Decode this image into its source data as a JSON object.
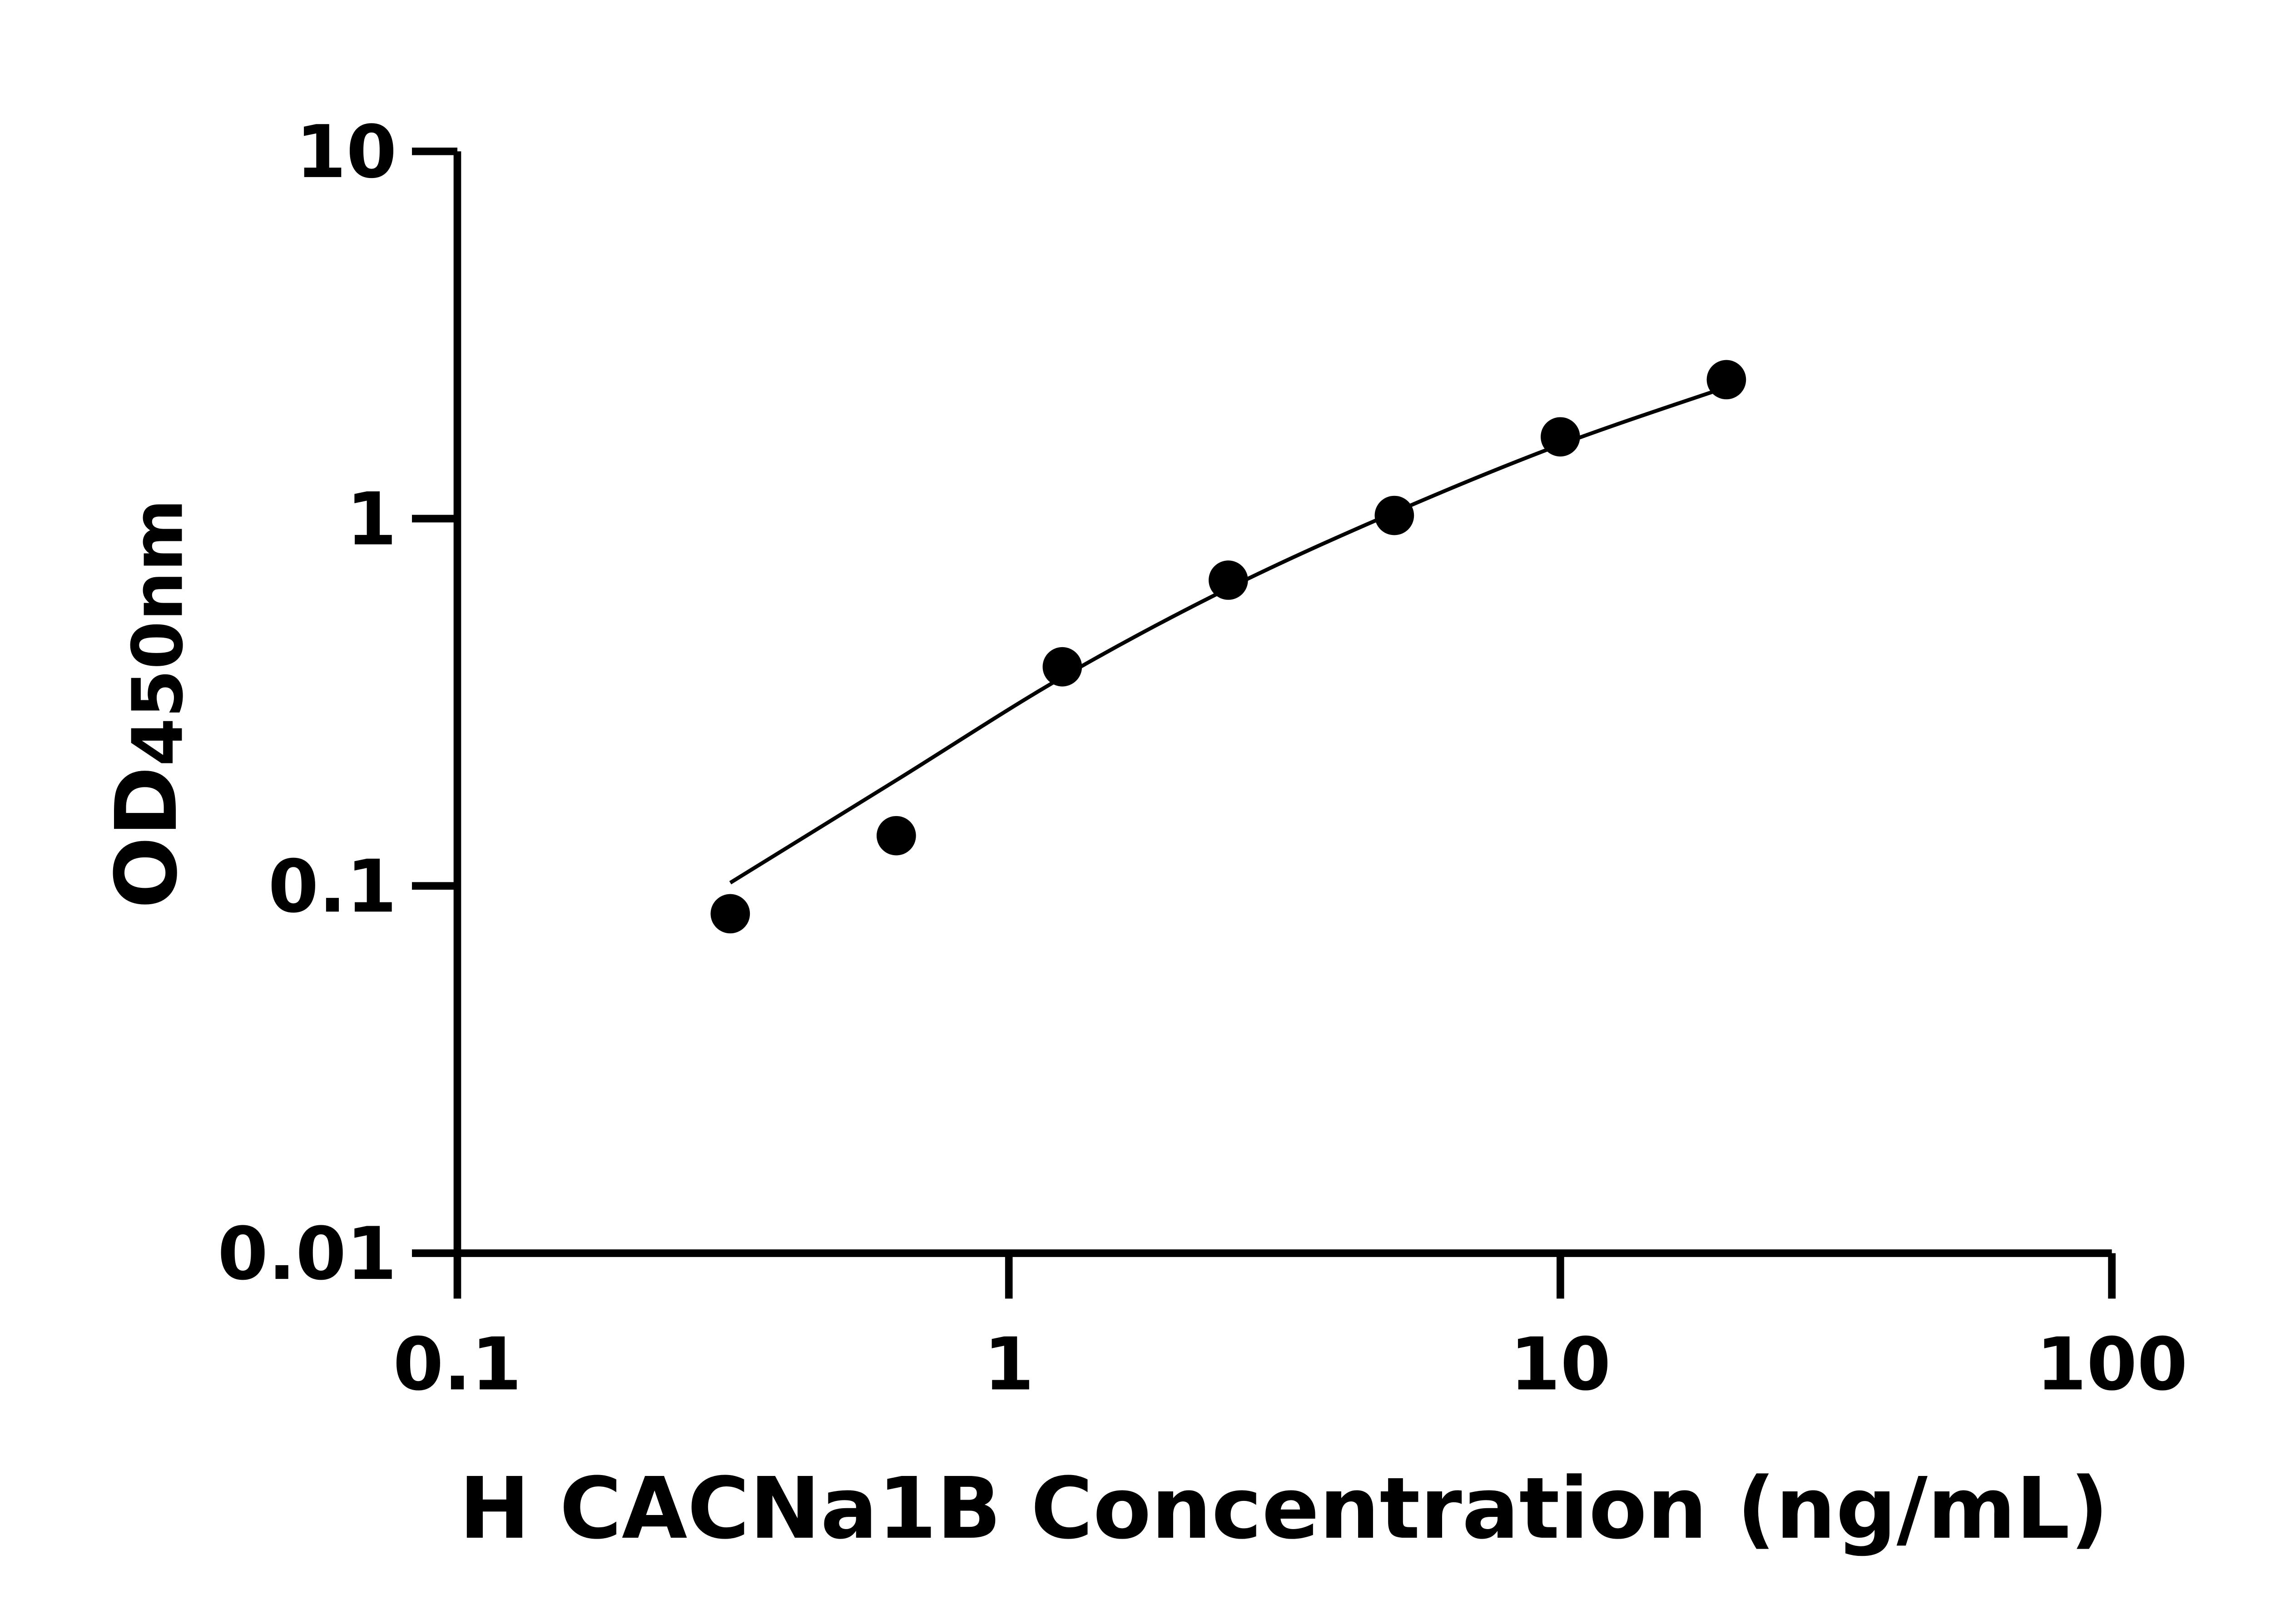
{
  "chart_data": {
    "type": "scatter",
    "title": "",
    "xlabel": "H CACNa1B Concentration (ng/mL)",
    "ylabel": {
      "main": "OD",
      "subscript": "450nm"
    },
    "x_scale": "log",
    "y_scale": "log",
    "xlim": [
      0.1,
      100
    ],
    "ylim": [
      0.01,
      10
    ],
    "x_ticks": [
      "0.1",
      "1",
      "10",
      "100"
    ],
    "y_ticks": [
      "0.01",
      "0.1",
      "1",
      "10"
    ],
    "grid": false,
    "legend": "none",
    "points": [
      {
        "x": 0.3125,
        "y": 0.084
      },
      {
        "x": 0.625,
        "y": 0.137
      },
      {
        "x": 1.25,
        "y": 0.395
      },
      {
        "x": 2.5,
        "y": 0.68
      },
      {
        "x": 5,
        "y": 1.02
      },
      {
        "x": 10,
        "y": 1.67
      },
      {
        "x": 20,
        "y": 2.39
      }
    ],
    "fit_curve": [
      {
        "x": 0.3125,
        "y": 0.102
      },
      {
        "x": 0.625,
        "y": 0.194
      },
      {
        "x": 1.25,
        "y": 0.37
      },
      {
        "x": 2.5,
        "y": 0.646
      },
      {
        "x": 5,
        "y": 1.04
      },
      {
        "x": 10,
        "y": 1.59
      },
      {
        "x": 20,
        "y": 2.28
      }
    ],
    "colors": {
      "points": "#000000",
      "axes": "#000000",
      "curve": "#000000"
    }
  }
}
